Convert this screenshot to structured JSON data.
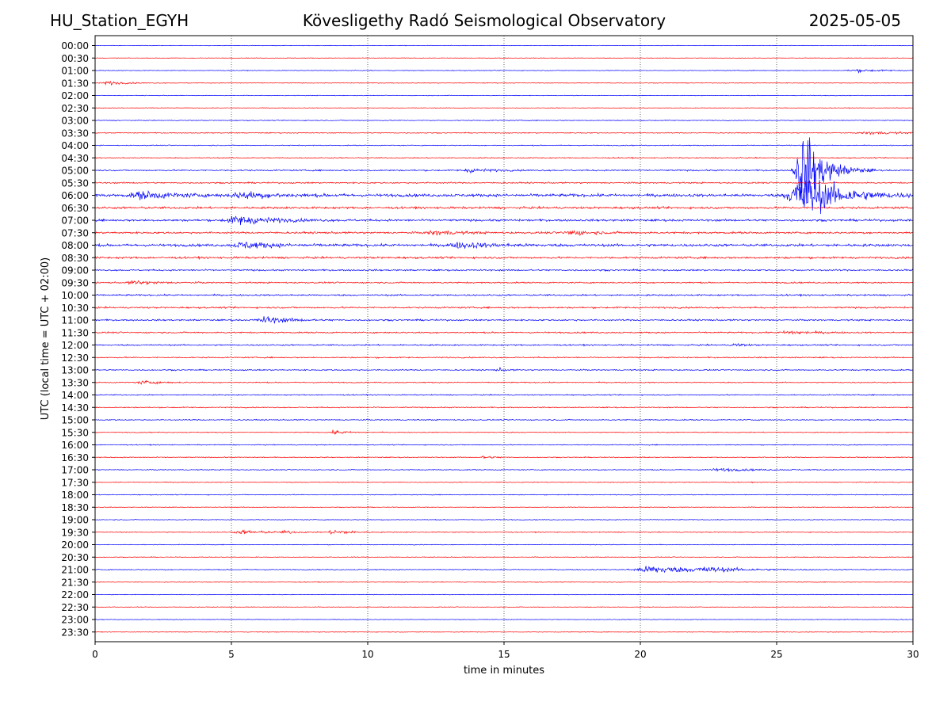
{
  "header": {
    "station": "HU_Station_EGYH",
    "observatory": "Kövesligethy Radó Seismological Observatory",
    "date": "2025-05-05"
  },
  "chart_data": {
    "type": "line",
    "title": "Kövesligethy Radó Seismological Observatory",
    "xlabel": "time in minutes",
    "ylabel": "UTC (local time = UTC + 02:00)",
    "xlim": [
      0,
      30
    ],
    "x_ticks": [
      0,
      5,
      10,
      15,
      20,
      25,
      30
    ],
    "x_grid": "dotted vertical lines at 5, 10, 15, 20, 25",
    "series_colors": {
      "even_rows": "#0000ff",
      "odd_rows": "#ff0000"
    },
    "rows": [
      {
        "label": "00:00",
        "noise": 0.3,
        "events": []
      },
      {
        "label": "00:30",
        "noise": 0.3,
        "events": []
      },
      {
        "label": "01:00",
        "noise": 0.35,
        "events": [
          {
            "t": 28.0,
            "amp": 1.5,
            "dur": 1.2
          }
        ]
      },
      {
        "label": "01:30",
        "noise": 0.35,
        "events": [
          {
            "t": 0.5,
            "amp": 2.0,
            "dur": 0.8
          }
        ]
      },
      {
        "label": "02:00",
        "noise": 0.35,
        "events": []
      },
      {
        "label": "02:30",
        "noise": 0.35,
        "events": []
      },
      {
        "label": "03:00",
        "noise": 0.45,
        "events": []
      },
      {
        "label": "03:30",
        "noise": 0.5,
        "events": [
          {
            "t": 28.5,
            "amp": 1.5,
            "dur": 1.5
          }
        ]
      },
      {
        "label": "04:00",
        "noise": 0.5,
        "events": []
      },
      {
        "label": "04:30",
        "noise": 0.6,
        "events": []
      },
      {
        "label": "05:00",
        "noise": 0.8,
        "events": [
          {
            "t": 13.8,
            "amp": 2.0,
            "dur": 1.0
          },
          {
            "t": 26.0,
            "amp": 45.0,
            "dur": 0.9
          }
        ]
      },
      {
        "label": "05:30",
        "noise": 0.8,
        "events": []
      },
      {
        "label": "06:00",
        "noise": 1.6,
        "events": [
          {
            "t": 1.8,
            "amp": 4.0,
            "dur": 1.5
          },
          {
            "t": 5.5,
            "amp": 3.5,
            "dur": 1.5
          },
          {
            "t": 26.0,
            "amp": 28.0,
            "dur": 1.5
          }
        ]
      },
      {
        "label": "06:30",
        "noise": 1.2,
        "events": []
      },
      {
        "label": "07:00",
        "noise": 1.2,
        "events": [
          {
            "t": 5.3,
            "amp": 5.0,
            "dur": 1.5
          }
        ]
      },
      {
        "label": "07:30",
        "noise": 1.1,
        "events": [
          {
            "t": 12.5,
            "amp": 2.5,
            "dur": 1.0
          },
          {
            "t": 17.5,
            "amp": 2.5,
            "dur": 1.0
          }
        ]
      },
      {
        "label": "08:00",
        "noise": 1.4,
        "events": [
          {
            "t": 5.5,
            "amp": 4.0,
            "dur": 1.2
          },
          {
            "t": 13.5,
            "amp": 3.0,
            "dur": 1.5
          }
        ]
      },
      {
        "label": "08:30",
        "noise": 1.1,
        "events": []
      },
      {
        "label": "09:00",
        "noise": 0.9,
        "events": []
      },
      {
        "label": "09:30",
        "noise": 0.8,
        "events": [
          {
            "t": 1.5,
            "amp": 2.0,
            "dur": 1.0
          }
        ]
      },
      {
        "label": "10:00",
        "noise": 0.9,
        "events": []
      },
      {
        "label": "10:30",
        "noise": 0.9,
        "events": []
      },
      {
        "label": "11:00",
        "noise": 0.9,
        "events": [
          {
            "t": 6.3,
            "amp": 4.0,
            "dur": 1.0
          }
        ]
      },
      {
        "label": "11:30",
        "noise": 0.8,
        "events": [
          {
            "t": 25.5,
            "amp": 2.0,
            "dur": 1.0
          }
        ]
      },
      {
        "label": "12:00",
        "noise": 0.8,
        "events": [
          {
            "t": 23.5,
            "amp": 2.0,
            "dur": 0.4
          }
        ]
      },
      {
        "label": "12:30",
        "noise": 0.7,
        "events": []
      },
      {
        "label": "13:00",
        "noise": 0.7,
        "events": [
          {
            "t": 14.8,
            "amp": 2.0,
            "dur": 0.3
          }
        ]
      },
      {
        "label": "13:30",
        "noise": 0.6,
        "events": [
          {
            "t": 1.8,
            "amp": 1.8,
            "dur": 0.8
          }
        ]
      },
      {
        "label": "14:00",
        "noise": 0.6,
        "events": []
      },
      {
        "label": "14:30",
        "noise": 0.6,
        "events": []
      },
      {
        "label": "15:00",
        "noise": 0.6,
        "events": []
      },
      {
        "label": "15:30",
        "noise": 0.5,
        "events": [
          {
            "t": 8.8,
            "amp": 2.0,
            "dur": 0.6
          }
        ]
      },
      {
        "label": "16:00",
        "noise": 0.5,
        "events": []
      },
      {
        "label": "16:30",
        "noise": 0.5,
        "events": [
          {
            "t": 14.3,
            "amp": 1.8,
            "dur": 0.4
          }
        ]
      },
      {
        "label": "17:00",
        "noise": 0.5,
        "events": [
          {
            "t": 23.0,
            "amp": 1.5,
            "dur": 1.5
          }
        ]
      },
      {
        "label": "17:30",
        "noise": 0.45,
        "events": []
      },
      {
        "label": "18:00",
        "noise": 0.45,
        "events": []
      },
      {
        "label": "18:30",
        "noise": 0.4,
        "events": []
      },
      {
        "label": "19:00",
        "noise": 0.45,
        "events": []
      },
      {
        "label": "19:30",
        "noise": 0.5,
        "events": [
          {
            "t": 5.5,
            "amp": 2.0,
            "dur": 1.2
          },
          {
            "t": 7.0,
            "amp": 1.5,
            "dur": 0.4
          },
          {
            "t": 8.8,
            "amp": 3.5,
            "dur": 0.6
          }
        ]
      },
      {
        "label": "20:00",
        "noise": 0.4,
        "events": []
      },
      {
        "label": "20:30",
        "noise": 0.4,
        "events": []
      },
      {
        "label": "21:00",
        "noise": 0.5,
        "events": [
          {
            "t": 20.5,
            "amp": 4.5,
            "dur": 2.0
          },
          {
            "t": 22.5,
            "amp": 2.0,
            "dur": 1.5
          }
        ]
      },
      {
        "label": "21:30",
        "noise": 0.4,
        "events": []
      },
      {
        "label": "22:00",
        "noise": 0.35,
        "events": []
      },
      {
        "label": "22:30",
        "noise": 0.35,
        "events": []
      },
      {
        "label": "23:00",
        "noise": 0.35,
        "events": []
      },
      {
        "label": "23:30",
        "noise": 0.35,
        "events": []
      }
    ]
  }
}
